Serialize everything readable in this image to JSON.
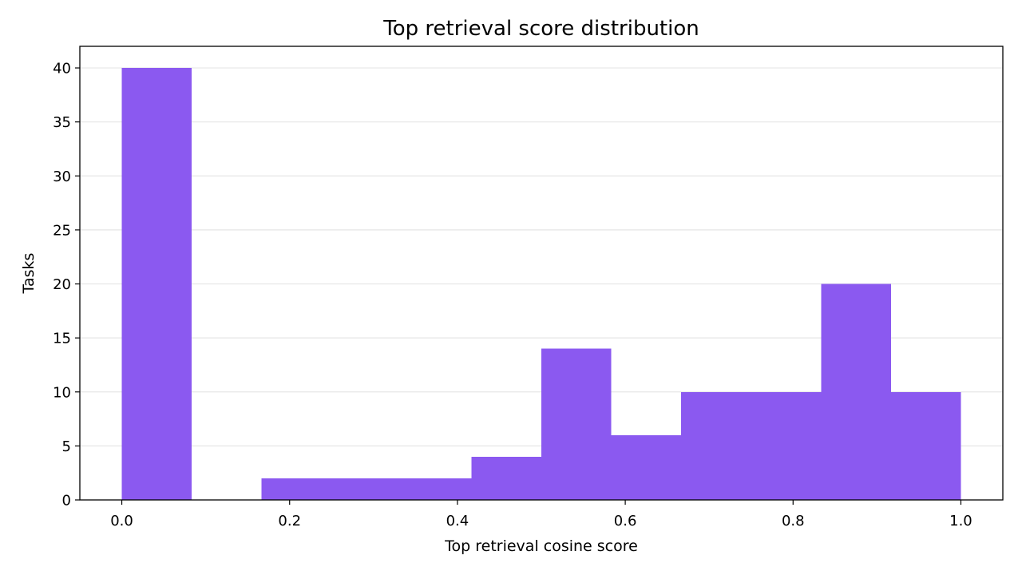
{
  "chart_data": {
    "type": "bar",
    "title": "Top retrieval score distribution",
    "xlabel": "Top retrieval cosine score",
    "ylabel": "Tasks",
    "bins": [
      {
        "start": 0.0,
        "end": 0.0833,
        "count": 40
      },
      {
        "start": 0.0833,
        "end": 0.1667,
        "count": 0
      },
      {
        "start": 0.1667,
        "end": 0.25,
        "count": 2
      },
      {
        "start": 0.25,
        "end": 0.3333,
        "count": 2
      },
      {
        "start": 0.3333,
        "end": 0.4167,
        "count": 2
      },
      {
        "start": 0.4167,
        "end": 0.5,
        "count": 4
      },
      {
        "start": 0.5,
        "end": 0.5833,
        "count": 14
      },
      {
        "start": 0.5833,
        "end": 0.6667,
        "count": 6
      },
      {
        "start": 0.6667,
        "end": 0.75,
        "count": 10
      },
      {
        "start": 0.75,
        "end": 0.8333,
        "count": 10
      },
      {
        "start": 0.8333,
        "end": 0.9167,
        "count": 20
      },
      {
        "start": 0.9167,
        "end": 1.0,
        "count": 10
      }
    ],
    "xlim": [
      -0.05,
      1.05
    ],
    "ylim": [
      0,
      42
    ],
    "xticks": [
      "0.0",
      "0.2",
      "0.4",
      "0.6",
      "0.8",
      "1.0"
    ],
    "yticks": [
      "0",
      "5",
      "10",
      "15",
      "20",
      "25",
      "30",
      "35",
      "40"
    ],
    "grid": "horizontal",
    "legend": "none",
    "bar_color": "#8b59f0",
    "grid_color": "#e6e6e6"
  }
}
